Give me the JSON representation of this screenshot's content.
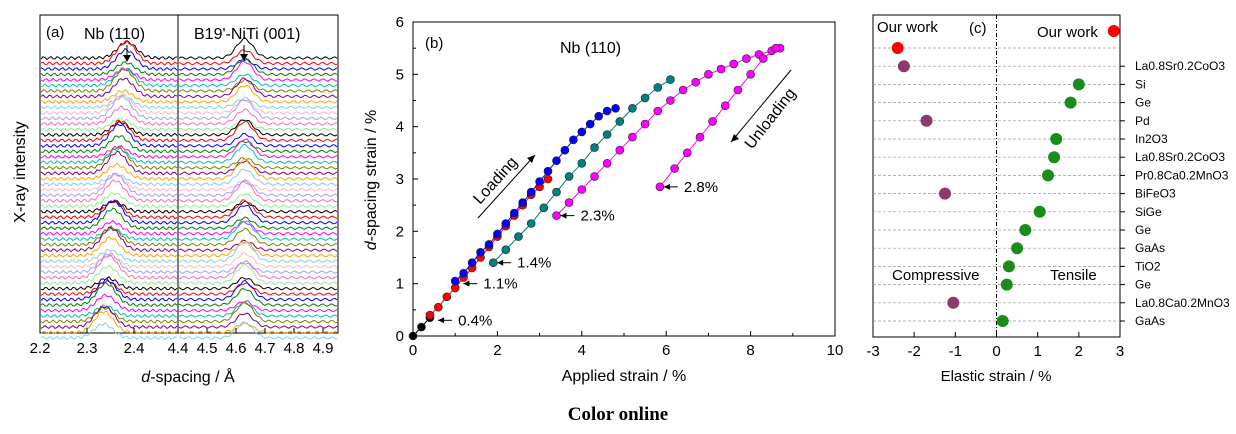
{
  "figure": {
    "caption": "Color online"
  },
  "chart_data": [
    {
      "id": "a",
      "type": "line",
      "panel_label": "(a)",
      "ylabel": "X-ray intensity",
      "xlabel_italic": "d",
      "xlabel_rest": "-spacing / Å",
      "left_title": "Nb (110)",
      "right_title": "B19'-NiTi (001)",
      "left_xlim": [
        2.2,
        4.4
      ],
      "left_ticks": [
        "2.2",
        "2.3",
        "2.4",
        "4.4"
      ],
      "right_xlim": [
        4.4,
        4.95
      ],
      "right_ticks": [
        "4.5",
        "4.6",
        "4.7",
        "4.8",
        "4.9"
      ],
      "series_count": 52,
      "left_peak_start": 2.335,
      "left_peak_end": 2.385,
      "right_peak": 4.63,
      "colors": [
        "#000000",
        "#ff0000",
        "#0000ff",
        "#008000",
        "#ff00ff",
        "#00bfbf",
        "#808000",
        "#800080",
        "#ffa500",
        "#87ceeb",
        "#ffb6c1",
        "#a0a0ff",
        "#ff69b4",
        "#90ee90"
      ]
    },
    {
      "id": "b",
      "type": "line",
      "panel_label": "(b)",
      "title": "Nb (110)",
      "xlabel": "Applied strain / %",
      "ylabel_italic": "d",
      "ylabel_rest": "-spacing strain / %",
      "xlim": [
        0,
        10
      ],
      "ylim": [
        0,
        6
      ],
      "xticks": [
        0,
        2,
        4,
        6,
        8,
        10
      ],
      "yticks": [
        0,
        1,
        2,
        3,
        4,
        5,
        6
      ],
      "series": [
        {
          "name": "0.4%",
          "color": "#000000",
          "x": [
            0,
            0.2,
            0.4
          ],
          "y": [
            0,
            0.17,
            0.35
          ]
        },
        {
          "name": "1.1%",
          "color": "#ff0000",
          "x": [
            0.4,
            0.6,
            0.8,
            1.0,
            1.2,
            1.4,
            1.6,
            1.8,
            2.0,
            2.2,
            2.4,
            2.6,
            2.8,
            3.0,
            3.2
          ],
          "y": [
            0.4,
            0.55,
            0.75,
            0.92,
            1.12,
            1.3,
            1.5,
            1.7,
            1.9,
            2.1,
            2.3,
            2.5,
            2.7,
            2.85,
            3.0
          ]
        },
        {
          "name": "1.4%",
          "color": "#0000ff",
          "x": [
            1.0,
            1.2,
            1.4,
            1.6,
            1.8,
            2.0,
            2.2,
            2.4,
            2.6,
            2.8,
            3.0,
            3.2,
            3.4,
            3.6,
            3.8,
            4.0,
            4.2,
            4.4,
            4.6,
            4.8
          ],
          "y": [
            1.05,
            1.2,
            1.4,
            1.6,
            1.75,
            1.95,
            2.15,
            2.35,
            2.55,
            2.75,
            2.95,
            3.15,
            3.35,
            3.55,
            3.75,
            3.9,
            4.05,
            4.2,
            4.3,
            4.35
          ]
        },
        {
          "name": "2.3%",
          "color": "#008080",
          "x": [
            1.9,
            2.2,
            2.5,
            2.8,
            3.1,
            3.4,
            3.7,
            4.0,
            4.3,
            4.6,
            4.9,
            5.2,
            5.5,
            5.8,
            6.1
          ],
          "y": [
            1.4,
            1.65,
            1.9,
            2.15,
            2.45,
            2.75,
            3.05,
            3.3,
            3.6,
            3.85,
            4.1,
            4.35,
            4.55,
            4.75,
            4.9
          ]
        },
        {
          "name": "2.8%",
          "color": "#ff00ff",
          "x": [
            3.4,
            3.7,
            4.0,
            4.3,
            4.6,
            4.9,
            5.2,
            5.5,
            5.8,
            6.1,
            6.4,
            6.7,
            7.0,
            7.3,
            7.6,
            7.9,
            8.2,
            8.5,
            8.7
          ],
          "y": [
            2.3,
            2.55,
            2.8,
            3.05,
            3.3,
            3.55,
            3.8,
            4.05,
            4.3,
            4.5,
            4.7,
            4.85,
            5.0,
            5.1,
            5.2,
            5.3,
            5.38,
            5.45,
            5.5
          ]
        },
        {
          "name": "unload-2.8",
          "color": "#ff00ff",
          "x": [
            5.85,
            6.2,
            6.5,
            6.8,
            7.1,
            7.4,
            7.7,
            8.0,
            8.3,
            8.6
          ],
          "y": [
            2.85,
            3.2,
            3.5,
            3.8,
            4.1,
            4.4,
            4.7,
            5.0,
            5.3,
            5.5
          ]
        }
      ],
      "annotations": [
        {
          "text": "0.4%",
          "x": 0.5,
          "y": 0.3
        },
        {
          "text": "1.1%",
          "x": 1.1,
          "y": 1.0
        },
        {
          "text": "1.4%",
          "x": 1.9,
          "y": 1.4
        },
        {
          "text": "2.3%",
          "x": 3.4,
          "y": 2.3
        },
        {
          "text": "2.8%",
          "x": 5.85,
          "y": 2.85
        },
        {
          "text": "Loading"
        },
        {
          "text": "Unloading"
        }
      ]
    },
    {
      "id": "c",
      "type": "scatter",
      "panel_label": "(c)",
      "xlabel": "Elastic strain / %",
      "xlim": [
        -3,
        3
      ],
      "xticks": [
        -3,
        -2,
        -1,
        0,
        1,
        2,
        3
      ],
      "region_left": "Compressive",
      "region_right": "Tensile",
      "our_work_label": "Our work",
      "points": [
        {
          "label": "Our work (compressive)",
          "x": -2.4,
          "color": "#ff0000"
        },
        {
          "label": "La0.8Sr0.2CoO3",
          "x": -2.25,
          "color": "#8b3a6b"
        },
        {
          "label": "Si",
          "x": 2.0,
          "color": "#1a8c1a"
        },
        {
          "label": "Ge",
          "x": 1.8,
          "color": "#1a8c1a"
        },
        {
          "label": "Pd",
          "x": -1.7,
          "color": "#8b3a6b"
        },
        {
          "label": "In2O3",
          "x": 1.45,
          "color": "#1a8c1a"
        },
        {
          "label": "La0.8Sr0.2CoO3",
          "x": 1.4,
          "color": "#1a8c1a"
        },
        {
          "label": "Pr0.8Ca0.2MnO3",
          "x": 1.25,
          "color": "#1a8c1a"
        },
        {
          "label": "BiFeO3",
          "x": -1.25,
          "color": "#8b3a6b"
        },
        {
          "label": "SiGe",
          "x": 1.05,
          "color": "#1a8c1a"
        },
        {
          "label": "Ge",
          "x": 0.7,
          "color": "#1a8c1a"
        },
        {
          "label": "GaAs",
          "x": 0.5,
          "color": "#1a8c1a"
        },
        {
          "label": "TiO2",
          "x": 0.3,
          "color": "#1a8c1a"
        },
        {
          "label": "Ge",
          "x": 0.25,
          "color": "#1a8c1a"
        },
        {
          "label": "La0.8Ca0.2MnO3",
          "x": -1.05,
          "color": "#8b3a6b"
        },
        {
          "label": "GaAs",
          "x": 0.15,
          "color": "#1a8c1a"
        }
      ],
      "our_work_tensile_x": 2.85,
      "row_labels": [
        {
          "base": "La",
          "parts": [
            [
              "0.8",
              ""
            ],
            [
              "Sr",
              ""
            ],
            [
              "0.2",
              ""
            ],
            [
              "CoO",
              "3"
            ]
          ],
          "text": "La0.8Sr0.2CoO3"
        },
        {
          "text": "Si"
        },
        {
          "text": "Ge"
        },
        {
          "text": "Pd"
        },
        {
          "text": "In2O3"
        },
        {
          "text": "La0.8Sr0.2CoO3"
        },
        {
          "text": "Pr0.8Ca0.2MnO3"
        },
        {
          "text": "BiFeO3"
        },
        {
          "text": "SiGe"
        },
        {
          "text": "Ge"
        },
        {
          "text": "GaAs"
        },
        {
          "text": "TiO2"
        },
        {
          "text": "Ge"
        },
        {
          "text": "La0.8Ca0.2MnO3"
        },
        {
          "text": "GaAs"
        }
      ]
    }
  ]
}
